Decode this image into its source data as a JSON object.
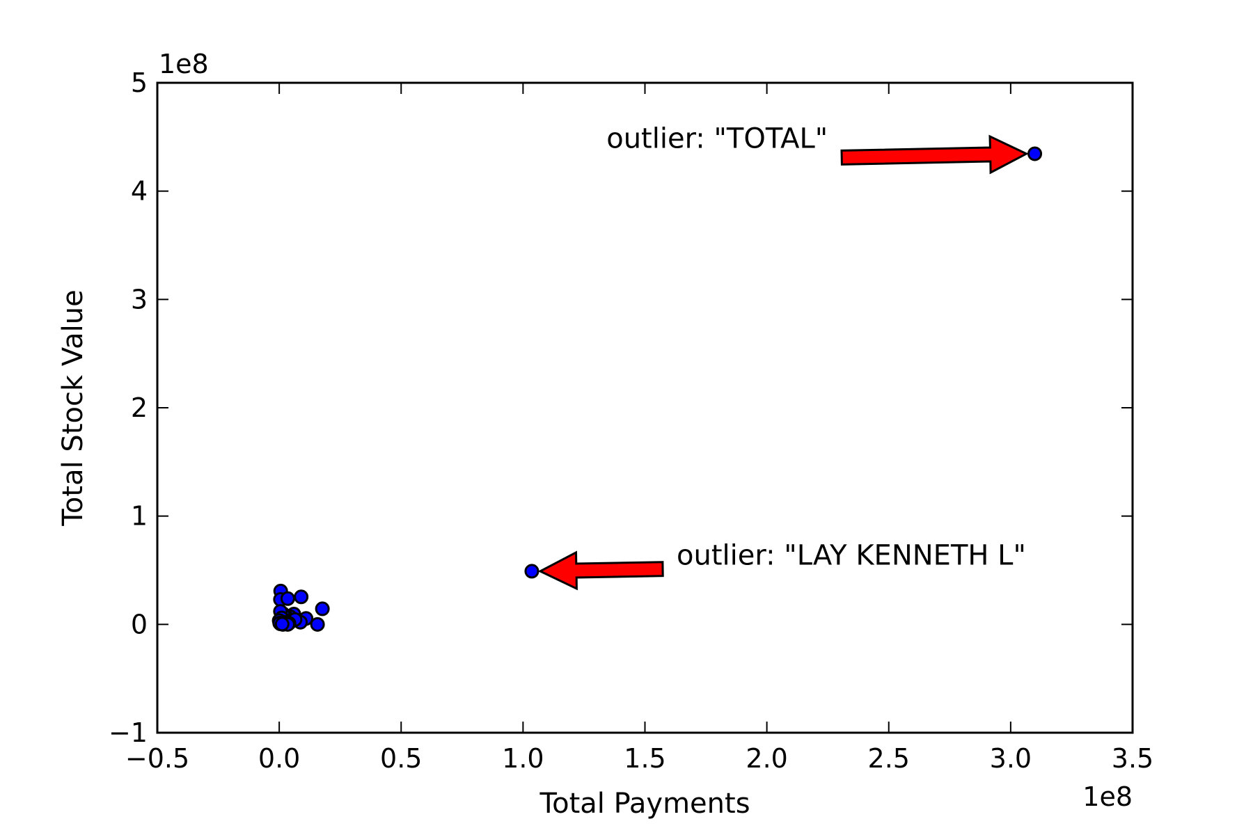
{
  "chart_data": {
    "type": "scatter",
    "title": "",
    "xlabel": "Total Payments",
    "ylabel": "Total Stock Value",
    "xlim": [
      -50000000,
      350000000
    ],
    "ylim": [
      -100000000,
      500000000
    ],
    "x_ticks": [
      -50000000,
      0,
      50000000,
      100000000,
      150000000,
      200000000,
      250000000,
      300000000,
      350000000
    ],
    "x_tick_labels": [
      "−0.5",
      "0.0",
      "0.5",
      "1.0",
      "1.5",
      "2.0",
      "2.5",
      "3.0",
      "3.5"
    ],
    "y_ticks": [
      -100000000,
      0,
      100000000,
      200000000,
      300000000,
      400000000,
      500000000
    ],
    "y_tick_labels": [
      "−1",
      "0",
      "1",
      "2",
      "3",
      "4",
      "5"
    ],
    "x_offset_label": "1e8",
    "y_offset_label": "1e8",
    "grid": false,
    "legend": "none",
    "marker_color": "#0000ff",
    "marker_edge_color": "#000000",
    "arrow_color": "#ff0000",
    "points": [
      {
        "x": 309900000,
        "y": 434500000
      },
      {
        "x": 103600000,
        "y": 49100000
      },
      {
        "x": 600000,
        "y": 30800000
      },
      {
        "x": 500000,
        "y": 23000000
      },
      {
        "x": 3500000,
        "y": 23800000
      },
      {
        "x": 9000000,
        "y": 25400000
      },
      {
        "x": 17700000,
        "y": 14400000
      },
      {
        "x": 11000000,
        "y": 5500000
      },
      {
        "x": 15700000,
        "y": 0
      },
      {
        "x": 8700000,
        "y": 2000000
      },
      {
        "x": 6000000,
        "y": 9500000
      },
      {
        "x": 4500000,
        "y": 7000000
      },
      {
        "x": 3500000,
        "y": 5000000
      },
      {
        "x": 2500000,
        "y": 8000000
      },
      {
        "x": 1500000,
        "y": 10000000
      },
      {
        "x": 500000,
        "y": 12000000
      },
      {
        "x": 2000000,
        "y": 4000000
      },
      {
        "x": 1000000,
        "y": 6000000
      },
      {
        "x": 3000000,
        "y": 2000000
      },
      {
        "x": 5000000,
        "y": 3000000
      },
      {
        "x": 6500000,
        "y": 4500000
      },
      {
        "x": 4000000,
        "y": 1000000
      },
      {
        "x": 2000000,
        "y": 1500000
      },
      {
        "x": 1000000,
        "y": 2500000
      },
      {
        "x": 500000,
        "y": 500000
      },
      {
        "x": 1500000,
        "y": 0
      },
      {
        "x": 2500000,
        "y": 500000
      },
      {
        "x": 3500000,
        "y": 0
      },
      {
        "x": 0,
        "y": 3500000
      },
      {
        "x": 200000,
        "y": 1200000
      },
      {
        "x": 1200000,
        "y": 300000
      }
    ],
    "annotations": [
      {
        "text": "outlier: \"TOTAL\"",
        "point": {
          "x": 309900000,
          "y": 434500000
        },
        "text_pos": {
          "x": 225000000,
          "y": 440000000
        }
      },
      {
        "text": "outlier: \"LAY KENNETH L\"",
        "point": {
          "x": 103600000,
          "y": 49100000
        },
        "text_pos": {
          "x": 163000000,
          "y": 55000000
        }
      }
    ]
  }
}
